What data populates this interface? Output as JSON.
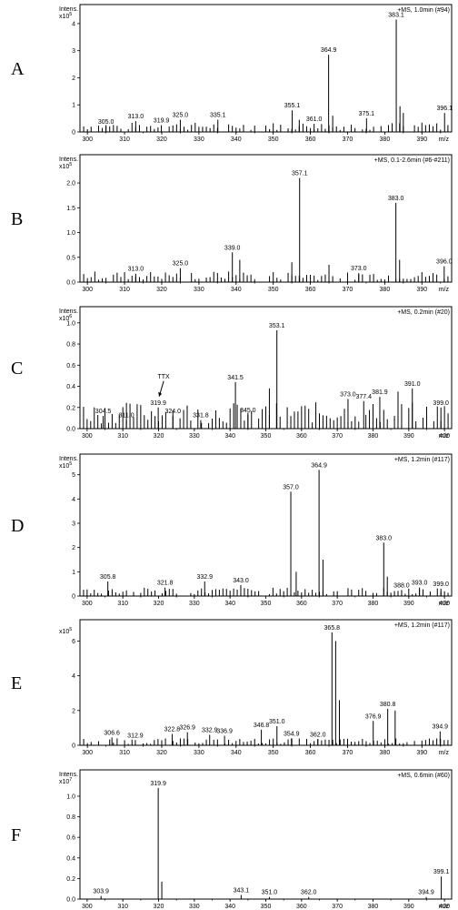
{
  "chart_data": [
    {
      "type": "bar",
      "panel_letter": "A",
      "header": "+MS, 1.0min (#94)",
      "y_title": "Intens.",
      "y_scale": "x10",
      "y_exp": "5",
      "xlabel": "m/z",
      "xlim": [
        298,
        398
      ],
      "ylim": [
        0,
        4.3
      ],
      "x_ticks": [
        300,
        310,
        320,
        330,
        340,
        350,
        360,
        370,
        380,
        390
      ],
      "y_ticks": [
        0,
        1,
        2,
        3,
        4
      ],
      "peaks": [
        {
          "x": 383.1,
          "y": 4.15,
          "label": "383.1"
        },
        {
          "x": 364.9,
          "y": 2.85,
          "label": "364.9"
        },
        {
          "x": 355.1,
          "y": 0.8,
          "label": "355.1"
        },
        {
          "x": 396.1,
          "y": 0.7,
          "label": "396.1"
        },
        {
          "x": 375.1,
          "y": 0.5,
          "label": "375.1"
        },
        {
          "x": 335.1,
          "y": 0.45,
          "label": "335.1"
        },
        {
          "x": 325.0,
          "y": 0.45,
          "label": "325.0"
        },
        {
          "x": 313.0,
          "y": 0.4,
          "label": "313.0"
        },
        {
          "x": 361.0,
          "y": 0.3,
          "label": "361.0"
        },
        {
          "x": 319.9,
          "y": 0.25,
          "label": "319.9"
        },
        {
          "x": 305.0,
          "y": 0.2,
          "label": "305.0"
        },
        {
          "x": 384.1,
          "y": 0.95,
          "label": ""
        },
        {
          "x": 385.0,
          "y": 0.7,
          "label": ""
        },
        {
          "x": 366.0,
          "y": 0.6,
          "label": ""
        },
        {
          "x": 357.0,
          "y": 0.45,
          "label": ""
        }
      ],
      "noise_level": 0.35
    },
    {
      "type": "bar",
      "panel_letter": "B",
      "header": "+MS, 0.1-2.6min (#6-#211)",
      "y_title": "Intens.",
      "y_scale": "x10",
      "y_exp": "5",
      "xlabel": "m/z",
      "xlim": [
        298,
        398
      ],
      "ylim": [
        0,
        2.35
      ],
      "x_ticks": [
        300,
        310,
        320,
        330,
        340,
        350,
        360,
        370,
        380,
        390
      ],
      "y_ticks": [
        0,
        0.5,
        1.0,
        1.5,
        2.0
      ],
      "y_tick_labels": [
        "0.0",
        "0.5",
        "1.0",
        "1.5",
        "2.0"
      ],
      "peaks": [
        {
          "x": 357.1,
          "y": 2.1,
          "label": "357.1"
        },
        {
          "x": 383.0,
          "y": 1.6,
          "label": "383.0"
        },
        {
          "x": 339.0,
          "y": 0.6,
          "label": "339.0"
        },
        {
          "x": 396.0,
          "y": 0.32,
          "label": "396.0"
        },
        {
          "x": 325.0,
          "y": 0.28,
          "label": "325.0"
        },
        {
          "x": 373.0,
          "y": 0.18,
          "label": "373.0"
        },
        {
          "x": 313.0,
          "y": 0.17,
          "label": "313.0"
        },
        {
          "x": 341.0,
          "y": 0.45,
          "label": ""
        },
        {
          "x": 355.0,
          "y": 0.4,
          "label": ""
        },
        {
          "x": 365.0,
          "y": 0.35,
          "label": ""
        },
        {
          "x": 384.0,
          "y": 0.45,
          "label": ""
        }
      ],
      "noise_level": 0.22
    },
    {
      "type": "bar",
      "panel_letter": "C",
      "header": "+MS, 0.2min (#20)",
      "y_title": "Intens.",
      "y_scale": "x10",
      "y_exp": "6",
      "xlabel": "m/z",
      "xlim": [
        298,
        402
      ],
      "ylim": [
        0,
        1.05
      ],
      "x_ticks": [
        300,
        310,
        320,
        330,
        340,
        350,
        360,
        370,
        380,
        390,
        400
      ],
      "y_ticks": [
        0,
        0.2,
        0.4,
        0.6,
        0.8,
        1.0
      ],
      "y_tick_labels": [
        "0.0",
        "0.2",
        "0.4",
        "0.6",
        "0.8",
        "1.0"
      ],
      "annotation": {
        "text": "TTX",
        "x": 319.9
      },
      "peaks": [
        {
          "x": 353.1,
          "y": 0.93,
          "label": "353.1"
        },
        {
          "x": 341.5,
          "y": 0.44,
          "label": "341.5"
        },
        {
          "x": 391.0,
          "y": 0.38,
          "label": "391.0"
        },
        {
          "x": 381.9,
          "y": 0.3,
          "label": "381.9"
        },
        {
          "x": 373.0,
          "y": 0.28,
          "label": "373.0"
        },
        {
          "x": 377.4,
          "y": 0.26,
          "label": "377.4"
        },
        {
          "x": 319.9,
          "y": 0.2,
          "label": "319.9"
        },
        {
          "x": 399.0,
          "y": 0.2,
          "label": "399.0"
        },
        {
          "x": 345.0,
          "y": 0.13,
          "label": "345.0"
        },
        {
          "x": 324.0,
          "y": 0.12,
          "label": "324.0"
        },
        {
          "x": 304.5,
          "y": 0.12,
          "label": "304.5"
        },
        {
          "x": 311.0,
          "y": 0.08,
          "label": "311.0"
        },
        {
          "x": 331.8,
          "y": 0.08,
          "label": "331.8"
        },
        {
          "x": 351.0,
          "y": 0.38,
          "label": ""
        },
        {
          "x": 387.0,
          "y": 0.35,
          "label": ""
        }
      ],
      "noise_level": 0.25
    },
    {
      "type": "bar",
      "panel_letter": "D",
      "header": "+MS, 1.2min (#117)",
      "y_title": "Intens.",
      "y_scale": "x10",
      "y_exp": "5",
      "xlabel": "m/z",
      "xlim": [
        298,
        402
      ],
      "ylim": [
        0,
        5.4
      ],
      "x_ticks": [
        300,
        310,
        320,
        330,
        340,
        350,
        360,
        370,
        380,
        390,
        400
      ],
      "y_ticks": [
        0,
        1,
        2,
        3,
        4,
        5
      ],
      "peaks": [
        {
          "x": 364.9,
          "y": 5.2,
          "label": "364.9"
        },
        {
          "x": 357.0,
          "y": 4.3,
          "label": "357.0"
        },
        {
          "x": 383.0,
          "y": 2.2,
          "label": "383.0"
        },
        {
          "x": 332.9,
          "y": 0.6,
          "label": "332.9"
        },
        {
          "x": 305.8,
          "y": 0.6,
          "label": "305.8"
        },
        {
          "x": 343.0,
          "y": 0.45,
          "label": "343.0"
        },
        {
          "x": 321.8,
          "y": 0.35,
          "label": "321.8"
        },
        {
          "x": 393.0,
          "y": 0.35,
          "label": "393.0"
        },
        {
          "x": 399.0,
          "y": 0.3,
          "label": "399.0"
        },
        {
          "x": 388.0,
          "y": 0.25,
          "label": "388.0"
        },
        {
          "x": 366.0,
          "y": 1.5,
          "label": ""
        },
        {
          "x": 358.5,
          "y": 1.0,
          "label": ""
        },
        {
          "x": 384.0,
          "y": 0.8,
          "label": ""
        }
      ],
      "noise_level": 0.35
    },
    {
      "type": "bar",
      "panel_letter": "E",
      "header": "+MS, 1.2min (#117)",
      "y_title": "",
      "y_scale": "x10",
      "y_exp": "5",
      "xlabel": "m/z",
      "xlim": [
        298,
        398
      ],
      "ylim": [
        0,
        6.6
      ],
      "x_ticks": [
        300,
        310,
        320,
        330,
        340,
        350,
        360,
        370,
        380,
        390
      ],
      "y_ticks": [
        0,
        2,
        4,
        6
      ],
      "peaks": [
        {
          "x": 365.8,
          "y": 6.5,
          "label": "365.8"
        },
        {
          "x": 380.8,
          "y": 2.1,
          "label": "380.8"
        },
        {
          "x": 376.9,
          "y": 1.4,
          "label": "376.9"
        },
        {
          "x": 351.0,
          "y": 1.1,
          "label": "351.0"
        },
        {
          "x": 346.8,
          "y": 0.9,
          "label": "346.8"
        },
        {
          "x": 394.9,
          "y": 0.8,
          "label": "394.9"
        },
        {
          "x": 326.9,
          "y": 0.75,
          "label": "326.9"
        },
        {
          "x": 322.8,
          "y": 0.65,
          "label": "322.8"
        },
        {
          "x": 332.9,
          "y": 0.6,
          "label": "332.9"
        },
        {
          "x": 336.9,
          "y": 0.55,
          "label": "336.9"
        },
        {
          "x": 306.6,
          "y": 0.45,
          "label": "306.6"
        },
        {
          "x": 354.9,
          "y": 0.4,
          "label": "354.9"
        },
        {
          "x": 362.0,
          "y": 0.35,
          "label": "362.0"
        },
        {
          "x": 312.9,
          "y": 0.3,
          "label": "312.9"
        },
        {
          "x": 366.8,
          "y": 6.0,
          "label": ""
        },
        {
          "x": 367.8,
          "y": 2.6,
          "label": ""
        },
        {
          "x": 382.8,
          "y": 2.0,
          "label": ""
        }
      ],
      "noise_level": 0.4
    },
    {
      "type": "bar",
      "panel_letter": "F",
      "header": "+MS, 0.6min (#60)",
      "y_title": "Intens.",
      "y_scale": "x10",
      "y_exp": "7",
      "xlabel": "m/z",
      "xlim": [
        298,
        402
      ],
      "ylim": [
        0,
        1.15
      ],
      "x_ticks": [
        300,
        310,
        320,
        330,
        340,
        350,
        360,
        370,
        380,
        390,
        400
      ],
      "y_ticks": [
        0,
        0.2,
        0.4,
        0.6,
        0.8,
        1.0
      ],
      "y_tick_labels": [
        "0.0",
        "0.2",
        "0.4",
        "0.6",
        "0.8",
        "1.0"
      ],
      "peaks": [
        {
          "x": 319.9,
          "y": 1.08,
          "label": "319.9"
        },
        {
          "x": 399.1,
          "y": 0.22,
          "label": "399.1"
        },
        {
          "x": 320.9,
          "y": 0.17,
          "label": "",
          "minor": true
        },
        {
          "x": 343.1,
          "y": 0.04,
          "label": "343.1"
        },
        {
          "x": 303.9,
          "y": 0.03,
          "label": "303.9"
        },
        {
          "x": 351.0,
          "y": 0.02,
          "label": "351.0"
        },
        {
          "x": 362.0,
          "y": 0.02,
          "label": "362.0"
        },
        {
          "x": 394.9,
          "y": 0.02,
          "label": "394.9"
        }
      ],
      "noise_level": 0.0
    }
  ]
}
